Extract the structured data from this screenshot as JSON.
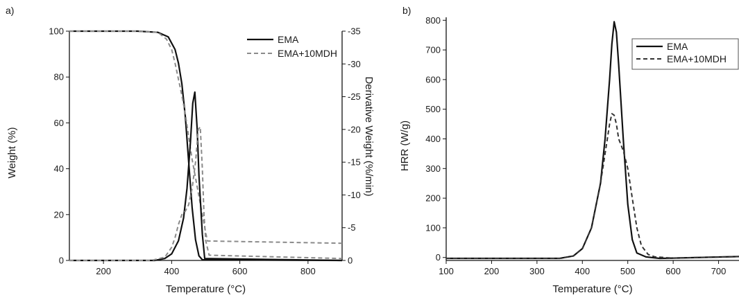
{
  "chart_data": [
    {
      "panel_label": "a)",
      "type": "line",
      "xlabel": "Temperature (°C)",
      "ylabel": "Weight (%)",
      "y2label": "Derivative Weight (%/min)",
      "xlim": [
        100,
        900
      ],
      "ylim": [
        0,
        100
      ],
      "y2lim": [
        0,
        -35
      ],
      "x_ticks": [
        200,
        400,
        600,
        800
      ],
      "y_ticks": [
        0,
        20,
        40,
        60,
        80,
        100
      ],
      "y2_ticks": [
        0,
        -5,
        -10,
        -15,
        -20,
        -25,
        -30,
        -35
      ],
      "legend": {
        "position": "top-right",
        "entries": [
          "EMA",
          "EMA+10MDH"
        ]
      },
      "series": [
        {
          "name": "EMA",
          "axis": "y",
          "style": "solid",
          "color": "#111111",
          "x": [
            100,
            300,
            360,
            390,
            410,
            420,
            430,
            440,
            450,
            460,
            470,
            480,
            490,
            900
          ],
          "y": [
            100,
            100,
            99.5,
            97.5,
            92,
            86,
            77,
            63,
            43,
            23,
            9,
            2,
            0.3,
            0
          ]
        },
        {
          "name": "EMA+10MDH",
          "axis": "y",
          "style": "dashed",
          "color": "#8a8a8a",
          "x": [
            100,
            300,
            360,
            385,
            400,
            410,
            420,
            430,
            440,
            450,
            460,
            470,
            480,
            490,
            500,
            505,
            900
          ],
          "y": [
            100,
            100,
            99.5,
            96.5,
            92,
            86,
            79,
            72,
            64,
            54,
            44,
            36,
            28,
            20,
            12,
            8.5,
            7.5
          ]
        },
        {
          "name": "EMA",
          "axis": "y2",
          "style": "solid",
          "color": "#111111",
          "x": [
            100,
            350,
            380,
            400,
            420,
            435,
            445,
            455,
            462,
            468,
            475,
            480,
            490,
            497,
            900
          ],
          "y": [
            0,
            0,
            -0.3,
            -1,
            -3,
            -6.5,
            -11,
            -18,
            -24,
            -25.7,
            -20,
            -13,
            -4,
            -0.3,
            0
          ]
        },
        {
          "name": "EMA+10MDH",
          "axis": "y2",
          "style": "dashed",
          "color": "#8a8a8a",
          "x": [
            100,
            340,
            380,
            400,
            410,
            420,
            430,
            440,
            450,
            460,
            470,
            478,
            484,
            490,
            495,
            500,
            510,
            900
          ],
          "y": [
            0,
            0,
            -0.5,
            -2,
            -3.5,
            -5.5,
            -7,
            -7.5,
            -8.5,
            -11,
            -15,
            -20,
            -20.4,
            -14,
            -7,
            -3,
            -0.8,
            -0.3
          ]
        }
      ]
    },
    {
      "panel_label": "b)",
      "type": "line",
      "xlabel": "Temperature (°C)",
      "ylabel": "HRR (W/g)",
      "xlim": [
        100,
        745
      ],
      "ylim": [
        -10,
        810
      ],
      "x_ticks": [
        100,
        200,
        300,
        400,
        500,
        600,
        700
      ],
      "y_ticks": [
        0,
        100,
        200,
        300,
        400,
        500,
        600,
        700,
        800
      ],
      "legend": {
        "position": "top-right",
        "entries": [
          "EMA",
          "EMA+10MDH"
        ]
      },
      "series": [
        {
          "name": "EMA",
          "style": "solid",
          "color": "#111111",
          "x": [
            100,
            350,
            380,
            400,
            420,
            440,
            450,
            460,
            465,
            470,
            475,
            480,
            490,
            500,
            510,
            520,
            540,
            570,
            600,
            745
          ],
          "y": [
            -3,
            -3,
            5,
            30,
            100,
            250,
            400,
            600,
            720,
            795,
            760,
            650,
            400,
            180,
            60,
            15,
            2,
            -3,
            -2,
            3
          ]
        },
        {
          "name": "EMA+10MDH",
          "style": "dashed",
          "color": "#333333",
          "x": [
            100,
            350,
            380,
            400,
            420,
            440,
            450,
            460,
            465,
            470,
            475,
            480,
            490,
            500,
            510,
            520,
            530,
            545,
            560,
            600,
            745
          ],
          "y": [
            -3,
            -3,
            5,
            30,
            100,
            250,
            350,
            450,
            485,
            480,
            450,
            400,
            360,
            300,
            200,
            100,
            40,
            10,
            2,
            -2,
            3
          ]
        }
      ]
    }
  ]
}
